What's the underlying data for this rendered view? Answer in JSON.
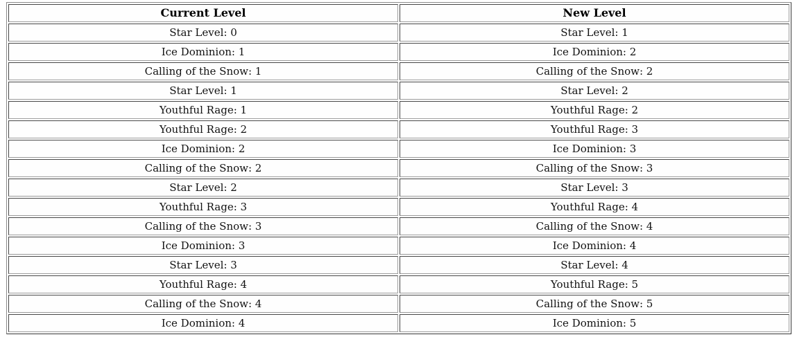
{
  "table": {
    "headers": [
      "Current Level",
      "New Level"
    ],
    "rows": [
      [
        "Star Level: 0",
        "Star Level: 1"
      ],
      [
        "Ice Dominion: 1",
        "Ice Dominion: 2"
      ],
      [
        "Calling of the Snow: 1",
        "Calling of the Snow: 2"
      ],
      [
        "Star Level: 1",
        "Star Level: 2"
      ],
      [
        "Youthful Rage: 1",
        "Youthful Rage: 2"
      ],
      [
        "Youthful Rage: 2",
        "Youthful Rage: 3"
      ],
      [
        "Ice Dominion: 2",
        "Ice Dominion: 3"
      ],
      [
        "Calling of the Snow: 2",
        "Calling of the Snow: 3"
      ],
      [
        "Star Level: 2",
        "Star Level: 3"
      ],
      [
        "Youthful Rage: 3",
        "Youthful Rage: 4"
      ],
      [
        "Calling of the Snow: 3",
        "Calling of the Snow: 4"
      ],
      [
        "Ice Dominion: 3",
        "Ice Dominion: 4"
      ],
      [
        "Star Level: 3",
        "Star Level: 4"
      ],
      [
        "Youthful Rage: 4",
        "Youthful Rage: 5"
      ],
      [
        "Calling of the Snow: 4",
        "Calling of the Snow: 5"
      ],
      [
        "Ice Dominion: 4",
        "Ice Dominion: 5"
      ]
    ]
  }
}
